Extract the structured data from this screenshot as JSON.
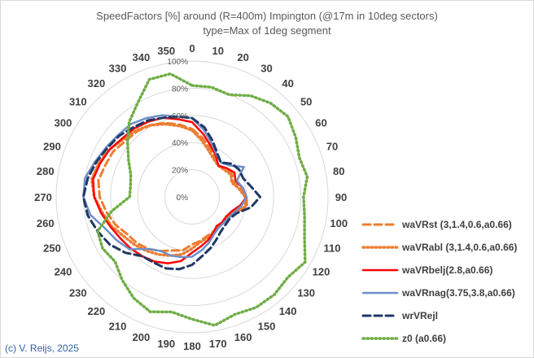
{
  "chart_data": {
    "type": "radar",
    "title": "SpeedFactors [%] around (R=400m) Impington (@17m in 10deg sectors)",
    "subtitle": "type=Max of 1deg segment",
    "directions": [
      "0",
      "10",
      "20",
      "30",
      "40",
      "50",
      "60",
      "70",
      "80",
      "90",
      "100",
      "110",
      "120",
      "130",
      "140",
      "150",
      "160",
      "170",
      "180",
      "190",
      "200",
      "210",
      "220",
      "230",
      "240",
      "250",
      "260",
      "270",
      "280",
      "290",
      "300",
      "310",
      "320",
      "330",
      "340",
      "350"
    ],
    "ring_labels": [
      "0%",
      "20%",
      "40%",
      "60%",
      "80%",
      "100%"
    ],
    "rmax": 100,
    "series": [
      {
        "name": "waVRst (3,1.4,0.6,a0.66)",
        "color": "#ed7d31",
        "style": "dash",
        "values": [
          50,
          44,
          38,
          33,
          30,
          32,
          34,
          32,
          36,
          40,
          41,
          34,
          30,
          30,
          29,
          30,
          31,
          33,
          35,
          40,
          42,
          46,
          50,
          53,
          55,
          60,
          64,
          68,
          70,
          68,
          67,
          64,
          63,
          61,
          58,
          54
        ]
      },
      {
        "name": "waVRabl (3,1.4,0.6,a0.66)",
        "color": "#ed7d31",
        "style": "dot",
        "values": [
          49,
          42,
          36,
          32,
          30,
          31,
          33,
          31,
          35,
          39,
          40,
          33,
          29,
          29,
          30,
          31,
          32,
          34,
          38,
          43,
          46,
          49,
          52,
          55,
          58,
          63,
          67,
          72,
          75,
          73,
          70,
          66,
          64,
          61,
          57,
          53
        ]
      },
      {
        "name": "waVRbelj(2.8,a0.66)",
        "color": "#ff0000",
        "style": "solid",
        "values": [
          55,
          47,
          40,
          35,
          30,
          33,
          36,
          34,
          38,
          40,
          36,
          31,
          29,
          29,
          28,
          31,
          34,
          37,
          41,
          48,
          52,
          55,
          57,
          59,
          61,
          64,
          68,
          72,
          74,
          72,
          70,
          67,
          66,
          64,
          62,
          58
        ]
      },
      {
        "name": "waVRnag(3.75,3.8,a0.66)",
        "color": "#6f8fc8",
        "style": "solid",
        "values": [
          58,
          50,
          42,
          36,
          33,
          36,
          44,
          35,
          38,
          40,
          37,
          33,
          31,
          30,
          30,
          32,
          36,
          40,
          44,
          45,
          46,
          46,
          50,
          60,
          64,
          68,
          76,
          80,
          80,
          76,
          73,
          71,
          70,
          67,
          64,
          60
        ]
      },
      {
        "name": "wrVRejl",
        "color": "#203864",
        "style": "dash",
        "values": [
          58,
          52,
          44,
          37,
          33,
          38,
          40,
          40,
          44,
          50,
          44,
          35,
          32,
          32,
          33,
          36,
          40,
          44,
          50,
          54,
          56,
          56,
          57,
          64,
          70,
          74,
          78,
          80,
          78,
          75,
          72,
          70,
          67,
          65,
          62,
          60
        ]
      },
      {
        "name": "z0 (a0.66)",
        "color": "#70ad47",
        "style": "dot",
        "values": [
          82,
          82,
          80,
          86,
          90,
          92,
          88,
          84,
          86,
          82,
          84,
          88,
          96,
          92,
          94,
          94,
          92,
          96,
          90,
          86,
          90,
          86,
          80,
          74,
          76,
          74,
          60,
          46,
          46,
          48,
          54,
          62,
          72,
          80,
          92,
          92
        ]
      }
    ]
  },
  "credit": "(c) V. Reijs, 2025"
}
